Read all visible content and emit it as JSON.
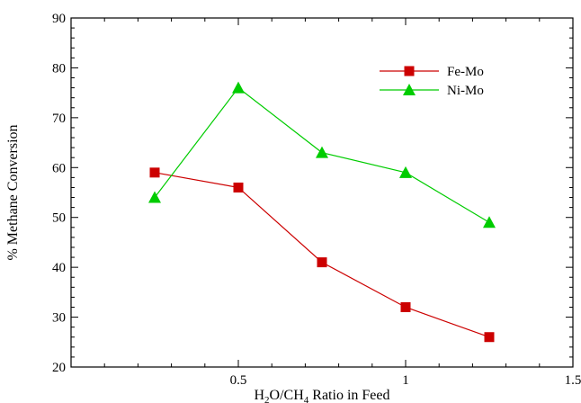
{
  "chart_data": {
    "type": "line",
    "title": "",
    "xlabel": "H₂O/CH₄ Ratio in Feed",
    "xlabel_parts": {
      "a": "H",
      "sub1": "2",
      "b": "O/CH",
      "sub2": "4",
      "c": " Ratio in Feed"
    },
    "ylabel": "% Methane Conversion",
    "xlim": [
      0,
      1.5
    ],
    "ylim": [
      20,
      90
    ],
    "x_ticks": [
      0.5,
      1,
      1.5
    ],
    "x_tick_labels": [
      "0.5",
      "1",
      "1.5"
    ],
    "y_ticks": [
      20,
      30,
      40,
      50,
      60,
      70,
      80,
      90
    ],
    "y_tick_labels": [
      "20",
      "30",
      "40",
      "50",
      "60",
      "70",
      "80",
      "90"
    ],
    "grid": false,
    "legend_position": "top-right",
    "x": [
      0.25,
      0.5,
      0.75,
      1.0,
      1.25
    ],
    "series": [
      {
        "name": "Fe-Mo",
        "marker": "square",
        "color": "#cc0000",
        "values": [
          59,
          56,
          41,
          32,
          26
        ]
      },
      {
        "name": "Ni-Mo",
        "marker": "triangle",
        "color": "#00cc00",
        "values": [
          54,
          76,
          63,
          59,
          49
        ]
      }
    ]
  }
}
